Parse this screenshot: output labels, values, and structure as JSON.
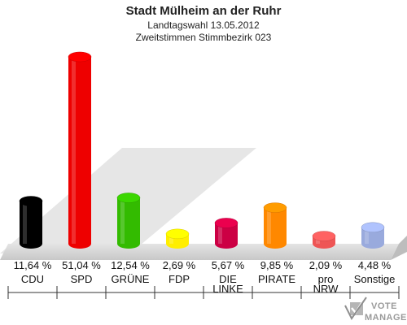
{
  "chart_data": {
    "type": "bar",
    "title": "Stadt Mülheim an der Ruhr",
    "subtitle_1": "Landtagswahl 13.05.2012",
    "subtitle_2": "Zweitstimmen Stimmbezirk 023",
    "categories": [
      "CDU",
      "SPD",
      "GRÜNE",
      "FDP",
      "DIE LINKE",
      "PIRATE",
      "pro NRW",
      "Sonstige"
    ],
    "category_lines": [
      [
        "CDU"
      ],
      [
        "SPD"
      ],
      [
        "GRÜNE"
      ],
      [
        "FDP"
      ],
      [
        "DIE",
        "LINKE"
      ],
      [
        "PIRATE"
      ],
      [
        "pro",
        "NRW"
      ],
      [
        "Sonstige"
      ]
    ],
    "values": [
      11.64,
      51.04,
      12.54,
      2.69,
      5.67,
      9.85,
      2.09,
      4.48
    ],
    "value_labels": [
      "11,64 %",
      "51,04 %",
      "12,54 %",
      "2,69 %",
      "5,67 %",
      "9,85 %",
      "2,09 %",
      "4,48 %"
    ],
    "colors": [
      "#000000",
      "#ee0000",
      "#33bb00",
      "#ffee00",
      "#cc0044",
      "#ff8800",
      "#ee5555",
      "#99aadd"
    ],
    "ylim": [
      0,
      51.04
    ],
    "grid": false,
    "legend": "none"
  },
  "logo": {
    "line1": "VOTE",
    "line2": "MANAGER"
  }
}
